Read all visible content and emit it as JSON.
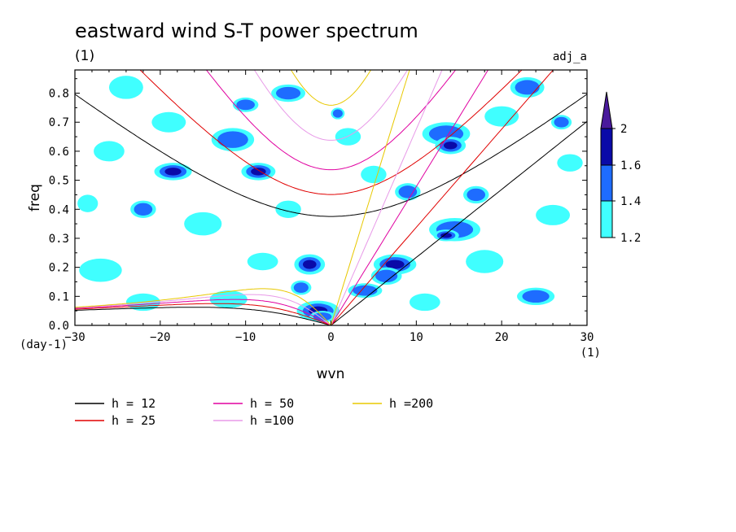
{
  "chart_data": {
    "type": "heatmap",
    "title": "eastward wind S-T power spectrum",
    "subtitle": "(1)",
    "tag": "adj_a",
    "xlabel": "wvn",
    "ylabel": "freq",
    "x_unit": "(1)",
    "y_unit": "(day-1)",
    "xlim": [
      -30,
      30
    ],
    "ylim": [
      0,
      0.88
    ],
    "x_ticks": [
      -30,
      -20,
      -10,
      0,
      10,
      20,
      30
    ],
    "x_tick_labels": [
      "−30",
      "−20",
      "−10",
      "0",
      "10",
      "20",
      "30"
    ],
    "y_ticks": [
      0,
      0.1,
      0.2,
      0.3,
      0.4,
      0.5,
      0.6,
      0.7,
      0.8
    ],
    "y_tick_labels": [
      "0.0",
      "0.1",
      "0.2",
      "0.3",
      "0.4",
      "0.5",
      "0.6",
      "0.7",
      "0.8"
    ],
    "colorbar": {
      "levels": [
        1.2,
        1.4,
        1.6,
        2
      ],
      "level_labels": [
        "1.2",
        "1.4",
        "1.6",
        "2"
      ],
      "colors": [
        "#40ffff",
        "#1e6cff",
        "#0a0aa8",
        "#4a1a9c"
      ]
    },
    "dispersion_curves": [
      {
        "label": "h = 12",
        "h": 12,
        "color": "#000000"
      },
      {
        "label": "h = 25",
        "h": 25,
        "color": "#e00000"
      },
      {
        "label": "h = 50",
        "h": 50,
        "color": "#e000a0"
      },
      {
        "label": "h =100",
        "h": 100,
        "color": "#e89ae8"
      },
      {
        "label": "h =200",
        "h": 200,
        "color": "#e8c800"
      }
    ],
    "blobs": [
      {
        "x": -1.5,
        "y": 0.05,
        "rx": 2.5,
        "ry": 0.035,
        "level": 3
      },
      {
        "x": -1.0,
        "y": 0.03,
        "rx": 1.5,
        "ry": 0.02,
        "level": 2
      },
      {
        "x": 7.5,
        "y": 0.21,
        "rx": 2.5,
        "ry": 0.035,
        "level": 3
      },
      {
        "x": 6.5,
        "y": 0.17,
        "rx": 1.8,
        "ry": 0.03,
        "level": 2
      },
      {
        "x": 4.0,
        "y": 0.12,
        "rx": 2.0,
        "ry": 0.025,
        "level": 2
      },
      {
        "x": 13.5,
        "y": 0.66,
        "rx": 2.8,
        "ry": 0.04,
        "level": 2
      },
      {
        "x": 14.0,
        "y": 0.62,
        "rx": 1.8,
        "ry": 0.03,
        "level": 3
      },
      {
        "x": 14.5,
        "y": 0.33,
        "rx": 3.0,
        "ry": 0.04,
        "level": 2
      },
      {
        "x": 13.5,
        "y": 0.31,
        "rx": 1.5,
        "ry": 0.02,
        "level": 3
      },
      {
        "x": -2.5,
        "y": 0.21,
        "rx": 1.8,
        "ry": 0.035,
        "level": 3
      },
      {
        "x": -3.5,
        "y": 0.13,
        "rx": 1.2,
        "ry": 0.025,
        "level": 2
      },
      {
        "x": -18.5,
        "y": 0.53,
        "rx": 2.2,
        "ry": 0.03,
        "level": 3
      },
      {
        "x": -8.5,
        "y": 0.53,
        "rx": 2.0,
        "ry": 0.03,
        "level": 3
      },
      {
        "x": -11.5,
        "y": 0.64,
        "rx": 2.5,
        "ry": 0.04,
        "level": 2
      },
      {
        "x": -5.0,
        "y": 0.8,
        "rx": 2.0,
        "ry": 0.03,
        "level": 2
      },
      {
        "x": 9.0,
        "y": 0.46,
        "rx": 1.5,
        "ry": 0.03,
        "level": 2
      },
      {
        "x": 23.0,
        "y": 0.82,
        "rx": 2.0,
        "ry": 0.035,
        "level": 2
      },
      {
        "x": 24.0,
        "y": 0.1,
        "rx": 2.2,
        "ry": 0.03,
        "level": 2
      },
      {
        "x": -27.0,
        "y": 0.19,
        "rx": 2.5,
        "ry": 0.04,
        "level": 1
      },
      {
        "x": -22.0,
        "y": 0.08,
        "rx": 2.0,
        "ry": 0.03,
        "level": 1
      },
      {
        "x": -15.0,
        "y": 0.35,
        "rx": 2.2,
        "ry": 0.04,
        "level": 1
      },
      {
        "x": -19.0,
        "y": 0.7,
        "rx": 2.0,
        "ry": 0.035,
        "level": 1
      },
      {
        "x": -26.0,
        "y": 0.6,
        "rx": 1.8,
        "ry": 0.035,
        "level": 1
      },
      {
        "x": -24.0,
        "y": 0.82,
        "rx": 2.0,
        "ry": 0.04,
        "level": 1
      },
      {
        "x": -8.0,
        "y": 0.22,
        "rx": 1.8,
        "ry": 0.03,
        "level": 1
      },
      {
        "x": 2.0,
        "y": 0.65,
        "rx": 1.5,
        "ry": 0.03,
        "level": 1
      },
      {
        "x": 18.0,
        "y": 0.22,
        "rx": 2.2,
        "ry": 0.04,
        "level": 1
      },
      {
        "x": 26.0,
        "y": 0.38,
        "rx": 2.0,
        "ry": 0.035,
        "level": 1
      },
      {
        "x": 28.0,
        "y": 0.56,
        "rx": 1.5,
        "ry": 0.03,
        "level": 1
      },
      {
        "x": 20.0,
        "y": 0.72,
        "rx": 2.0,
        "ry": 0.035,
        "level": 1
      },
      {
        "x": -28.5,
        "y": 0.42,
        "rx": 1.2,
        "ry": 0.03,
        "level": 1
      },
      {
        "x": -12.0,
        "y": 0.09,
        "rx": 2.2,
        "ry": 0.03,
        "level": 1
      },
      {
        "x": 11.0,
        "y": 0.08,
        "rx": 1.8,
        "ry": 0.03,
        "level": 1
      },
      {
        "x": -5.0,
        "y": 0.4,
        "rx": 1.5,
        "ry": 0.03,
        "level": 1
      },
      {
        "x": 5.0,
        "y": 0.52,
        "rx": 1.5,
        "ry": 0.03,
        "level": 1
      },
      {
        "x": -22.0,
        "y": 0.4,
        "rx": 1.5,
        "ry": 0.03,
        "level": 2
      },
      {
        "x": 17.0,
        "y": 0.45,
        "rx": 1.5,
        "ry": 0.03,
        "level": 2
      },
      {
        "x": 27.0,
        "y": 0.7,
        "rx": 1.2,
        "ry": 0.025,
        "level": 2
      },
      {
        "x": -10.0,
        "y": 0.76,
        "rx": 1.5,
        "ry": 0.025,
        "level": 2
      },
      {
        "x": 0.8,
        "y": 0.73,
        "rx": 0.8,
        "ry": 0.02,
        "level": 2
      }
    ]
  }
}
